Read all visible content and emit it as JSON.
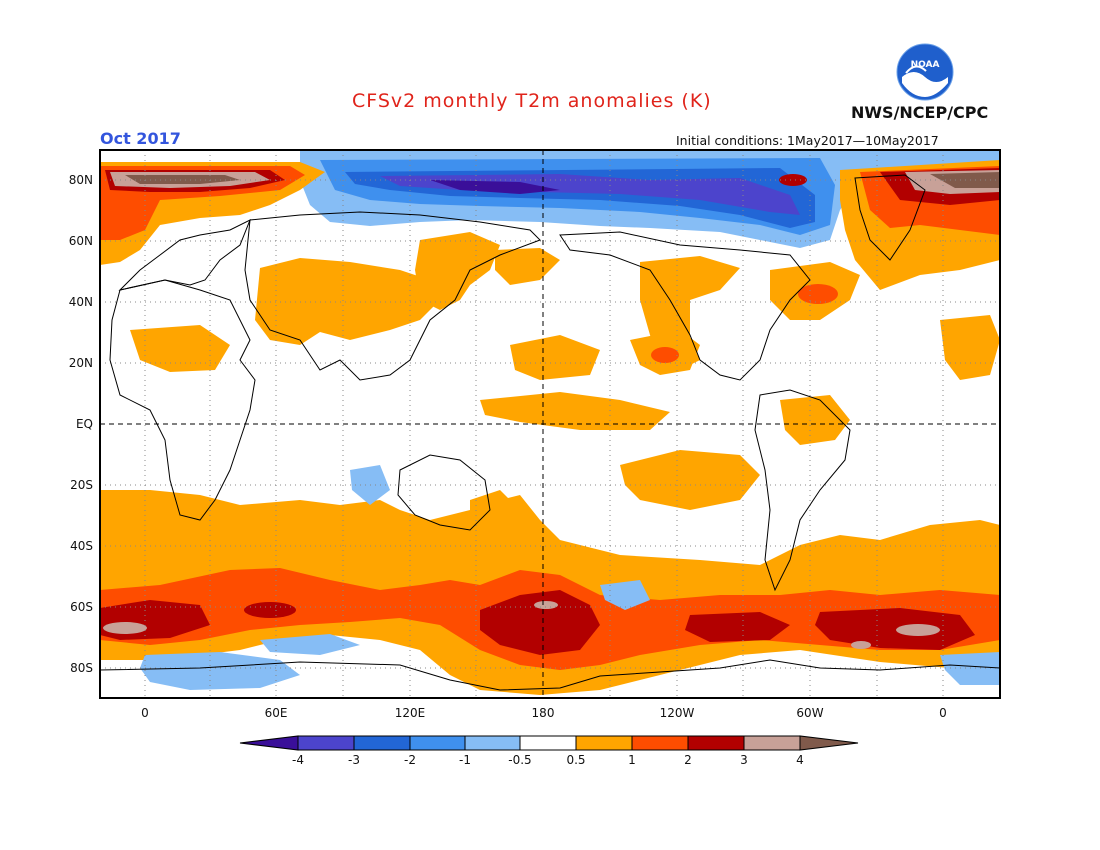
{
  "header": {
    "title": "CFSv2 monthly T2m anomalies (K)",
    "valid_month": "Oct 2017",
    "initial_conditions": "Initial conditions: 1May2017—10May2017",
    "agency": "NWS/NCEP/CPC",
    "logo_text": "NOAA"
  },
  "colors": {
    "title": "#e0241b",
    "valid_month": "#3355dd",
    "land_outline": "#000000"
  },
  "map": {
    "lat_labels": [
      "80N",
      "60N",
      "40N",
      "20N",
      "EQ",
      "20S",
      "40S",
      "60S",
      "80S"
    ],
    "lon_labels": [
      "0",
      "60E",
      "120E",
      "180",
      "120W",
      "60W",
      "0"
    ],
    "grid": "dotted every 20° lat / 30° lon",
    "reference_lines": [
      "Equator (dashed)",
      "Dateline 180 (dashed)"
    ]
  },
  "colorbar": {
    "tick_labels": [
      "-4",
      "-3",
      "-2",
      "-1",
      "-0.5",
      "0.5",
      "1",
      "2",
      "3",
      "4"
    ],
    "bins": [
      {
        "range": "< -4",
        "color": "#3a0f99"
      },
      {
        "range": "-4 to -3",
        "color": "#4c44cc"
      },
      {
        "range": "-3 to -2",
        "color": "#2266d6"
      },
      {
        "range": "-2 to -1",
        "color": "#3f90ee"
      },
      {
        "range": "-1 to -0.5",
        "color": "#86bdf5"
      },
      {
        "range": "-0.5 to 0.5",
        "color": "#ffffff"
      },
      {
        "range": "0.5 to 1",
        "color": "#ffa500"
      },
      {
        "range": "1 to 2",
        "color": "#fe4d00"
      },
      {
        "range": "2 to 3",
        "color": "#b20000"
      },
      {
        "range": "3 to 4",
        "color": "#c8a198"
      },
      {
        "range": "> 4",
        "color": "#805a4b"
      }
    ]
  }
}
